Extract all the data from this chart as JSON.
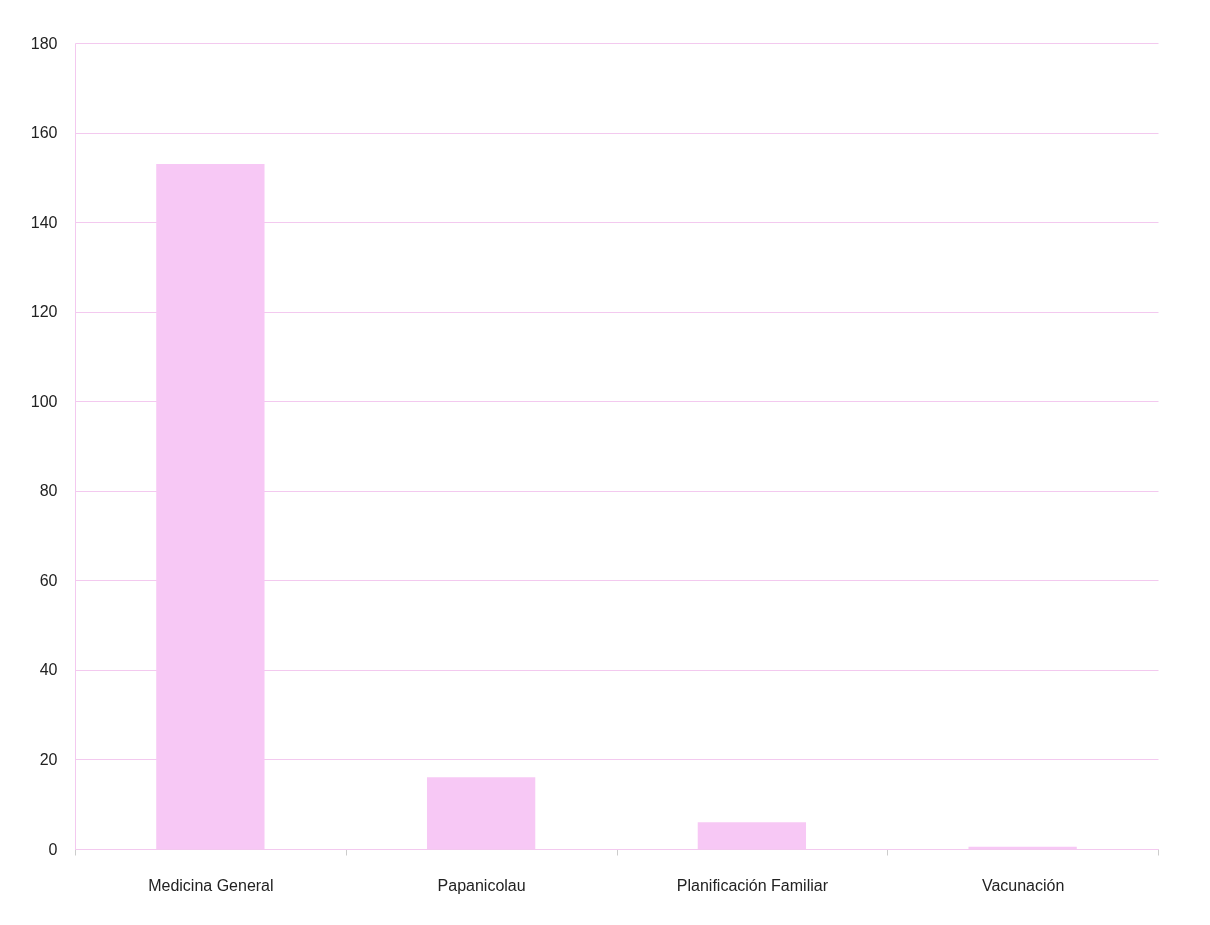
{
  "chart_data": {
    "type": "bar",
    "categories": [
      "Medicina General",
      "Papanicolau",
      "Planificación Familiar",
      "Vacunación"
    ],
    "values": [
      153,
      16,
      6,
      0.5
    ],
    "color": "#f7c8f5",
    "ylim": [
      0,
      180
    ],
    "yticks": [
      0,
      20,
      40,
      60,
      80,
      100,
      120,
      140,
      160,
      180
    ],
    "grid": "y"
  }
}
